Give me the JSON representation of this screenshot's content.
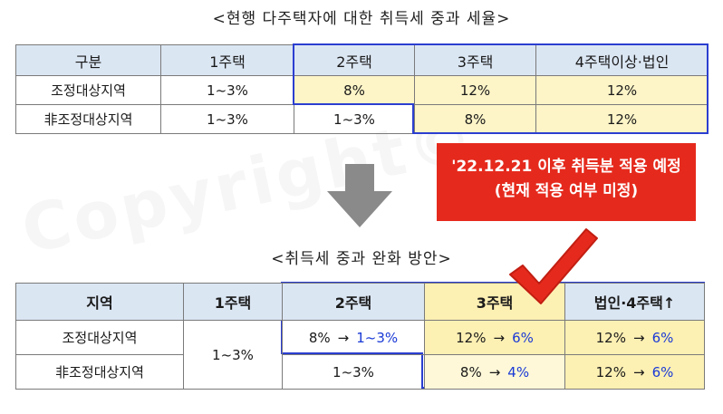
{
  "table1": {
    "title": "<현행 다주택자에 대한 취득세 중과 세율>",
    "headers": [
      "구분",
      "1주택",
      "2주택",
      "3주택",
      "4주택이상·법인"
    ],
    "rows": [
      [
        "조정대상지역",
        "1~3%",
        "8%",
        "12%",
        "12%"
      ],
      [
        "非조정대상지역",
        "1~3%",
        "1~3%",
        "8%",
        "12%"
      ]
    ]
  },
  "note": {
    "line1": "'22.12.21 이후 취득분 적용 예정",
    "line2": "(현재 적용 여부 미정)"
  },
  "table2": {
    "title": "<취득세 중과 완화 방안>",
    "headers": [
      "지역",
      "1주택",
      "2주택",
      "3주택",
      "법인·4주택↑"
    ],
    "row1": {
      "region": "조정대상지역",
      "one_house": "1~3%",
      "two": {
        "from": "8%",
        "arrow": "→",
        "to": "1~3%"
      },
      "three": {
        "from": "12%",
        "arrow": "→",
        "to": "6%"
      },
      "four": {
        "from": "12%",
        "arrow": "→",
        "to": "6%"
      }
    },
    "row2": {
      "region": "非조정대상지역",
      "two": "1~3%",
      "three": {
        "from": "8%",
        "arrow": "→",
        "to": "4%"
      },
      "four": {
        "from": "12%",
        "arrow": "→",
        "to": "6%"
      }
    }
  },
  "watermark": "Copyright©",
  "colors": {
    "header_bg": "#dbe6f3",
    "highlight": "#fdf4c7",
    "outline": "#2b3ed0",
    "note_bg": "#e52a1d",
    "accent_blue": "#1a3ad6"
  }
}
